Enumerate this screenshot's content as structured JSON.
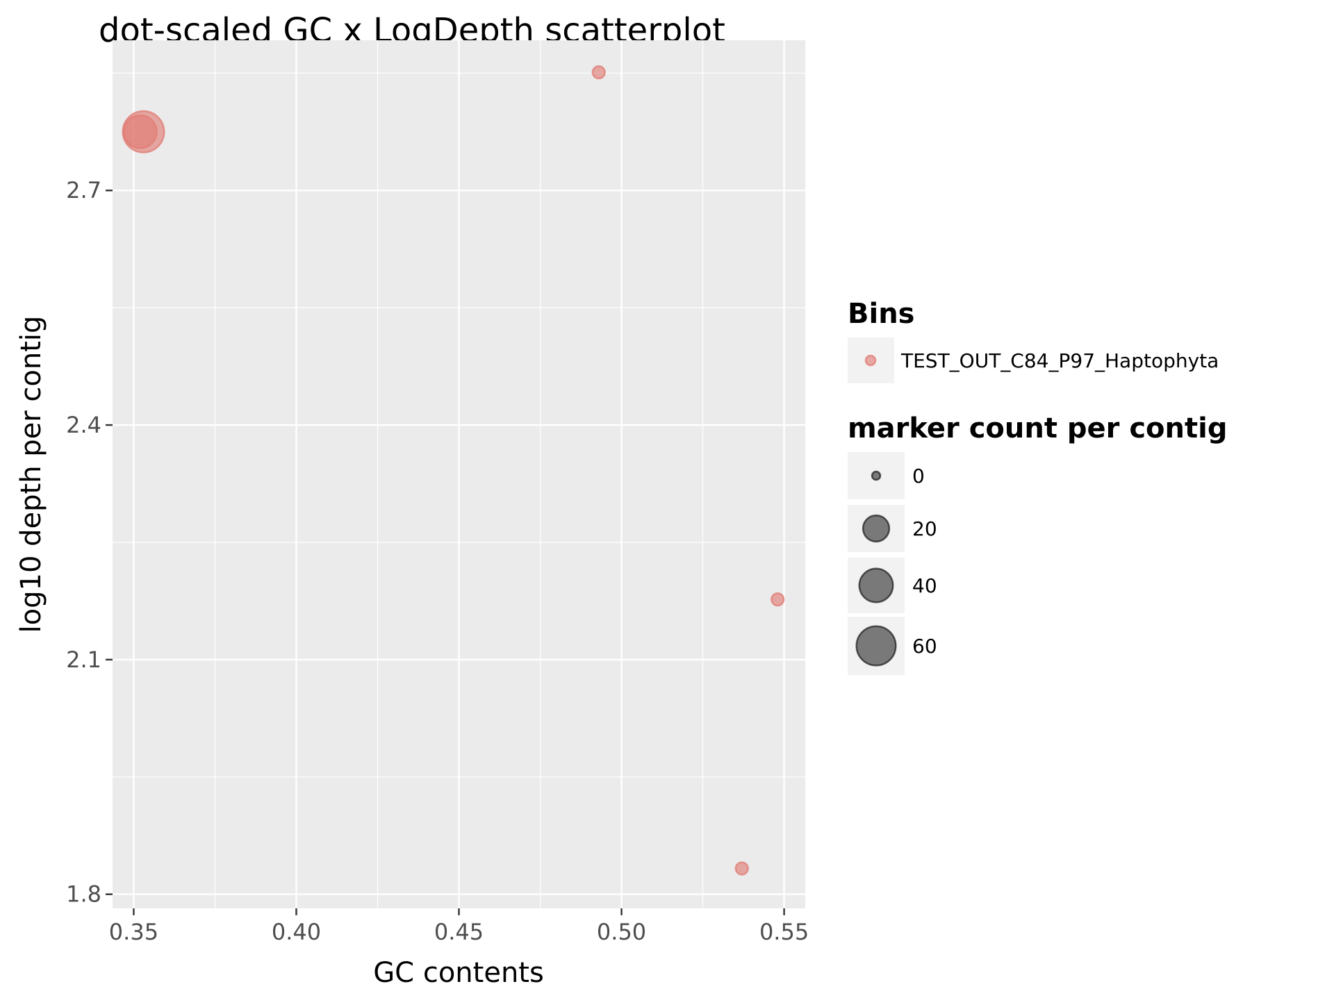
{
  "chart_data": {
    "type": "scatter",
    "title": "dot-scaled GC x LogDepth scatterplot",
    "xlabel": "GC contents",
    "ylabel": "log10 depth per contig",
    "xlim": [
      0.3435,
      0.5565
    ],
    "ylim": [
      1.782,
      2.892
    ],
    "x_ticks": [
      0.35,
      0.4,
      0.45,
      0.5,
      0.55
    ],
    "x_tick_labels": [
      "0.35",
      "0.40",
      "0.45",
      "0.50",
      "0.55"
    ],
    "y_ticks": [
      1.8,
      2.1,
      2.4,
      2.7
    ],
    "y_tick_labels": [
      "1.8",
      "2.1",
      "2.4",
      "2.7"
    ],
    "grid": true,
    "legend_position": "right",
    "series": [
      {
        "name": "TEST_OUT_C84_P97_Haptophyta",
        "color": "#e07b73",
        "points": [
          {
            "x": 0.352,
            "y": 2.775,
            "size": 38
          },
          {
            "x": 0.353,
            "y": 2.775,
            "size": 68
          },
          {
            "x": 0.493,
            "y": 2.851,
            "size": 1
          },
          {
            "x": 0.548,
            "y": 2.177,
            "size": 1
          },
          {
            "x": 0.537,
            "y": 1.833,
            "size": 1
          }
        ]
      }
    ],
    "legends": {
      "bins": {
        "title": "Bins",
        "items": [
          {
            "label": "TEST_OUT_C84_P97_Haptophyta",
            "color": "#e07b73"
          }
        ]
      },
      "size": {
        "title": "marker count per contig",
        "items": [
          {
            "label": "0",
            "value": 0
          },
          {
            "label": "20",
            "value": 20
          },
          {
            "label": "40",
            "value": 40
          },
          {
            "label": "60",
            "value": 60
          }
        ]
      }
    }
  }
}
